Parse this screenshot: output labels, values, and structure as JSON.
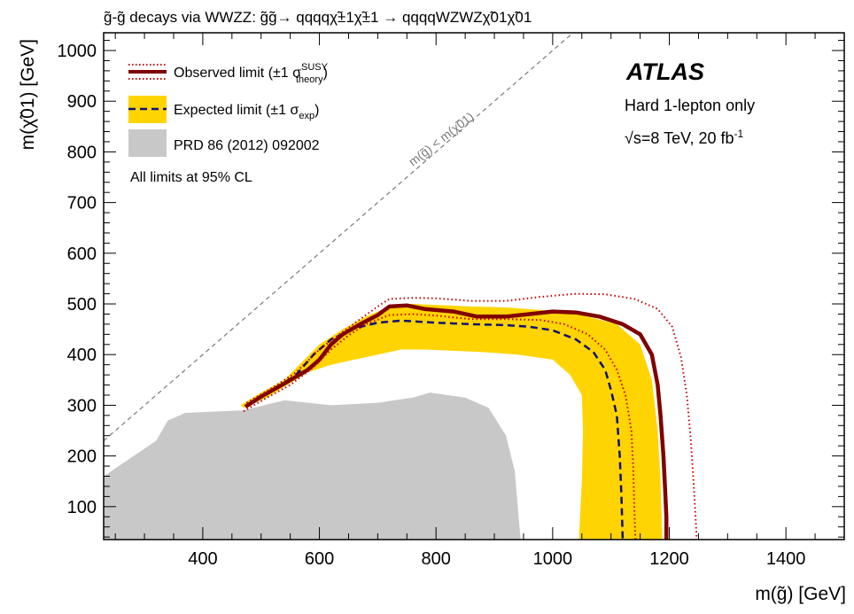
{
  "chart_data": {
    "type": "area",
    "title": "g̃-g̃ decays via WWZZ: g̃g̃→ qqqqχ̃±1χ̃±1 → qqqqWZWZχ̃01χ̃01",
    "xlabel": "m(g̃) [GeV]",
    "ylabel": "m(χ̃01) [GeV]",
    "xlim": [
      230,
      1500
    ],
    "ylim": [
      35,
      1035
    ],
    "x_ticks": [
      400,
      600,
      800,
      1000,
      1200,
      1400
    ],
    "y_ticks": [
      100,
      200,
      300,
      400,
      500,
      600,
      700,
      800,
      900,
      1000
    ],
    "grid": false,
    "legend_position": "top-left",
    "experiment_label": "ATLAS",
    "annotations": {
      "analysis": "Hard 1-lepton only",
      "energy": "√s=8 TeV, 20 fb",
      "lumi_exp": "-1",
      "cl_note": "All limits at 95% CL",
      "diagonal_label": "m(g̃) < m(χ̃01)"
    },
    "legend": [
      {
        "label": "Observed limit (±1 σ",
        "sup": "SUSY",
        "sub": "theory",
        "close": ")",
        "color": "#800000"
      },
      {
        "label": "Expected limit (±1 σ",
        "sub": "exp",
        "close": ")",
        "color": "#ffd400"
      },
      {
        "label": "PRD 86 (2012) 092002",
        "color": "#c8c8c8"
      }
    ],
    "series": [
      {
        "name": "PRD 86 (2012) 092002",
        "kind": "region",
        "color": "#c8c8c8",
        "points": [
          [
            230,
            160
          ],
          [
            320,
            230
          ],
          [
            340,
            270
          ],
          [
            370,
            285
          ],
          [
            470,
            290
          ],
          [
            540,
            310
          ],
          [
            620,
            300
          ],
          [
            700,
            305
          ],
          [
            760,
            315
          ],
          [
            790,
            325
          ],
          [
            850,
            315
          ],
          [
            890,
            295
          ],
          [
            920,
            240
          ],
          [
            935,
            170
          ],
          [
            940,
            100
          ],
          [
            945,
            35
          ],
          [
            230,
            35
          ]
        ]
      },
      {
        "name": "Expected band",
        "kind": "band",
        "color": "#ffd400",
        "points": [
          [
            465,
            300
          ],
          [
            500,
            325
          ],
          [
            540,
            350
          ],
          [
            570,
            385
          ],
          [
            600,
            420
          ],
          [
            640,
            450
          ],
          [
            680,
            475
          ],
          [
            720,
            495
          ],
          [
            760,
            500
          ],
          [
            800,
            498
          ],
          [
            860,
            495
          ],
          [
            920,
            493
          ],
          [
            980,
            488
          ],
          [
            1050,
            478
          ],
          [
            1110,
            460
          ],
          [
            1150,
            420
          ],
          [
            1170,
            350
          ],
          [
            1180,
            250
          ],
          [
            1185,
            150
          ],
          [
            1188,
            35
          ],
          [
            1045,
            35
          ],
          [
            1050,
            150
          ],
          [
            1052,
            250
          ],
          [
            1050,
            320
          ],
          [
            1030,
            360
          ],
          [
            1000,
            390
          ],
          [
            940,
            400
          ],
          [
            880,
            405
          ],
          [
            820,
            408
          ],
          [
            780,
            410
          ],
          [
            740,
            410
          ],
          [
            700,
            400
          ],
          [
            660,
            390
          ],
          [
            620,
            380
          ],
          [
            580,
            365
          ],
          [
            545,
            340
          ],
          [
            510,
            315
          ],
          [
            470,
            295
          ]
        ]
      },
      {
        "name": "Expected limit",
        "kind": "line",
        "style": "dashed",
        "color": "#10107a",
        "points": [
          [
            475,
            300
          ],
          [
            520,
            330
          ],
          [
            560,
            360
          ],
          [
            590,
            400
          ],
          [
            620,
            430
          ],
          [
            660,
            452
          ],
          [
            700,
            463
          ],
          [
            740,
            467
          ],
          [
            800,
            463
          ],
          [
            860,
            460
          ],
          [
            920,
            458
          ],
          [
            960,
            455
          ],
          [
            1000,
            448
          ],
          [
            1040,
            430
          ],
          [
            1070,
            405
          ],
          [
            1090,
            370
          ],
          [
            1100,
            330
          ],
          [
            1110,
            280
          ],
          [
            1115,
            200
          ],
          [
            1118,
            120
          ],
          [
            1120,
            35
          ]
        ]
      },
      {
        "name": "Observed limit",
        "kind": "line",
        "style": "solid",
        "color": "#800000",
        "points": [
          [
            473,
            297
          ],
          [
            500,
            317
          ],
          [
            540,
            343
          ],
          [
            580,
            370
          ],
          [
            600,
            390
          ],
          [
            620,
            420
          ],
          [
            640,
            440
          ],
          [
            670,
            460
          ],
          [
            700,
            478
          ],
          [
            720,
            495
          ],
          [
            750,
            497
          ],
          [
            780,
            490
          ],
          [
            830,
            485
          ],
          [
            870,
            475
          ],
          [
            920,
            475
          ],
          [
            960,
            480
          ],
          [
            1000,
            485
          ],
          [
            1040,
            483
          ],
          [
            1080,
            475
          ],
          [
            1120,
            460
          ],
          [
            1150,
            440
          ],
          [
            1170,
            400
          ],
          [
            1180,
            340
          ],
          [
            1185,
            280
          ],
          [
            1190,
            200
          ],
          [
            1193,
            130
          ],
          [
            1195,
            80
          ],
          [
            1195,
            35
          ]
        ]
      },
      {
        "name": "Observed +1σ",
        "kind": "line",
        "style": "dotted",
        "color": "#c00000",
        "points": [
          [
            475,
            305
          ],
          [
            520,
            335
          ],
          [
            560,
            365
          ],
          [
            600,
            410
          ],
          [
            640,
            445
          ],
          [
            670,
            470
          ],
          [
            700,
            495
          ],
          [
            720,
            510
          ],
          [
            760,
            512
          ],
          [
            800,
            511
          ],
          [
            860,
            506
          ],
          [
            920,
            506
          ],
          [
            980,
            514
          ],
          [
            1040,
            520
          ],
          [
            1090,
            519
          ],
          [
            1140,
            510
          ],
          [
            1180,
            490
          ],
          [
            1205,
            455
          ],
          [
            1220,
            395
          ],
          [
            1230,
            320
          ],
          [
            1237,
            230
          ],
          [
            1242,
            140
          ],
          [
            1245,
            80
          ],
          [
            1247,
            35
          ]
        ]
      },
      {
        "name": "Observed -1σ",
        "kind": "line",
        "style": "dotted",
        "color": "#c00000",
        "points": [
          [
            470,
            288
          ],
          [
            510,
            315
          ],
          [
            550,
            340
          ],
          [
            590,
            375
          ],
          [
            620,
            410
          ],
          [
            650,
            438
          ],
          [
            680,
            460
          ],
          [
            720,
            478
          ],
          [
            760,
            480
          ],
          [
            800,
            477
          ],
          [
            860,
            470
          ],
          [
            920,
            470
          ],
          [
            980,
            468
          ],
          [
            1020,
            460
          ],
          [
            1060,
            440
          ],
          [
            1090,
            410
          ],
          [
            1110,
            370
          ],
          [
            1125,
            320
          ],
          [
            1135,
            250
          ],
          [
            1138,
            180
          ],
          [
            1140,
            100
          ],
          [
            1142,
            35
          ]
        ]
      },
      {
        "name": "Kinematic limit",
        "kind": "diagonal",
        "style": "dashed",
        "color": "#7a7a7a",
        "points": [
          [
            230,
            230
          ],
          [
            1035,
            1035
          ]
        ]
      }
    ]
  }
}
